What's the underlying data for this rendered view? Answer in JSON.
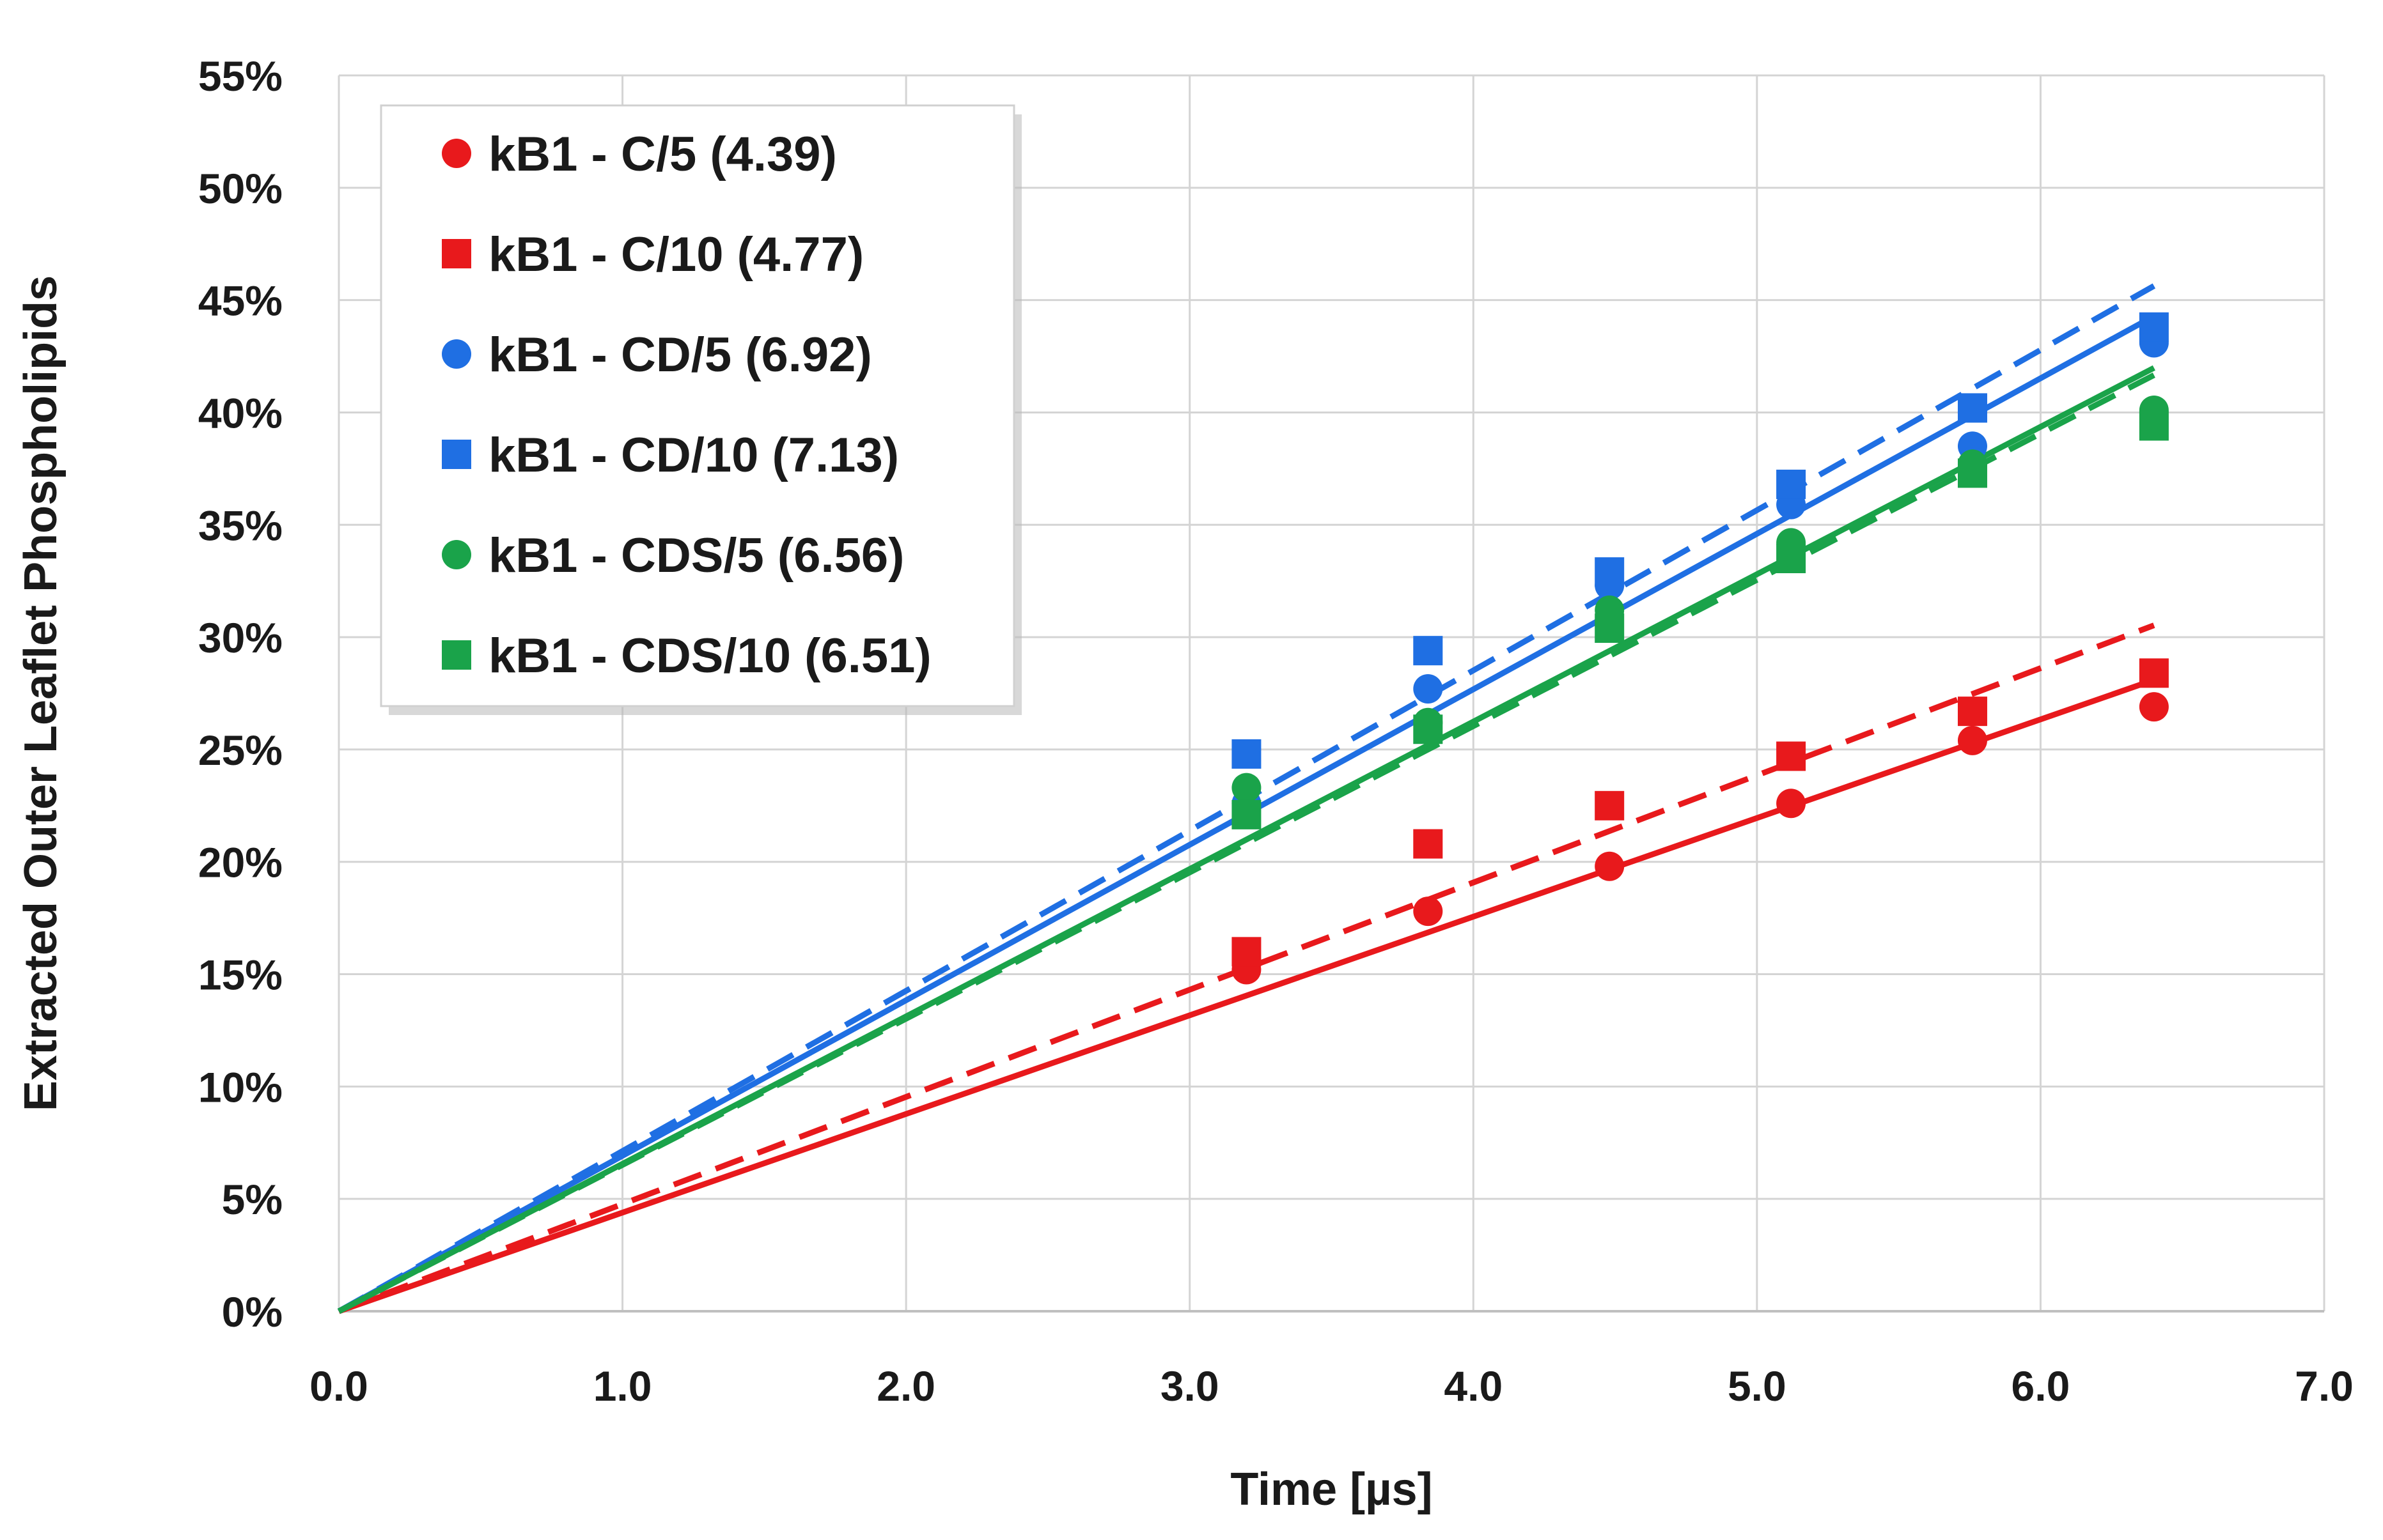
{
  "chart_data": {
    "type": "scatter",
    "title": "",
    "xlabel": "Time [µs]",
    "ylabel": "Extracted Outer Leaflet Phospholipids",
    "xlim": [
      0,
      7
    ],
    "ylim": [
      0,
      55
    ],
    "x_ticks": [
      0,
      1,
      2,
      3,
      4,
      5,
      6,
      7
    ],
    "x_tick_labels": [
      "0.0",
      "1.0",
      "2.0",
      "3.0",
      "4.0",
      "5.0",
      "6.0",
      "7.0"
    ],
    "y_ticks": [
      0,
      5,
      10,
      15,
      20,
      25,
      30,
      35,
      40,
      45,
      50,
      55
    ],
    "y_tick_labels": [
      "0%",
      "5%",
      "10%",
      "15%",
      "20%",
      "25%",
      "30%",
      "35%",
      "40%",
      "45%",
      "50%",
      "55%"
    ],
    "grid": true,
    "legend_position": "top-left",
    "series": [
      {
        "name": "kB1 - C/5 (4.39)",
        "color": "#e8191c",
        "marker": "circle",
        "fit_line": "solid",
        "slope": 4.39,
        "x": [
          3.2,
          3.84,
          4.48,
          5.12,
          5.76,
          6.4
        ],
        "y": [
          15.2,
          17.8,
          19.8,
          22.6,
          25.4,
          26.9
        ]
      },
      {
        "name": "kB1 - C/10 (4.77)",
        "color": "#e8191c",
        "marker": "square",
        "fit_line": "dashed",
        "slope": 4.77,
        "x": [
          3.2,
          3.84,
          4.48,
          5.12,
          5.76,
          6.4
        ],
        "y": [
          16.0,
          20.8,
          22.5,
          24.7,
          26.7,
          28.4
        ]
      },
      {
        "name": "kB1 - CD/5 (6.92)",
        "color": "#1f6fe3",
        "marker": "circle",
        "fit_line": "solid",
        "slope": 6.92,
        "x": [
          3.2,
          3.84,
          4.48,
          5.12,
          5.76,
          6.4
        ],
        "y": [
          22.6,
          27.7,
          32.3,
          35.9,
          38.5,
          43.1
        ]
      },
      {
        "name": "kB1 - CD/10 (7.13)",
        "color": "#1f6fe3",
        "marker": "square",
        "fit_line": "dashed",
        "slope": 7.13,
        "x": [
          3.2,
          3.84,
          4.48,
          5.12,
          5.76,
          6.4
        ],
        "y": [
          24.8,
          29.4,
          32.9,
          36.8,
          40.2,
          43.8
        ]
      },
      {
        "name": "kB1 - CDS/5 (6.56)",
        "color": "#1aa34a",
        "marker": "circle",
        "fit_line": "solid",
        "slope": 6.56,
        "x": [
          3.2,
          3.84,
          4.48,
          5.12,
          5.76,
          6.4
        ],
        "y": [
          23.3,
          26.2,
          31.2,
          34.2,
          37.7,
          40.1
        ]
      },
      {
        "name": "kB1 - CDS/10 (6.51)",
        "color": "#1aa34a",
        "marker": "square",
        "fit_line": "dashed",
        "slope": 6.51,
        "x": [
          3.2,
          3.84,
          4.48,
          5.12,
          5.76,
          6.4
        ],
        "y": [
          22.1,
          25.9,
          30.4,
          33.5,
          37.3,
          39.4
        ]
      }
    ]
  }
}
